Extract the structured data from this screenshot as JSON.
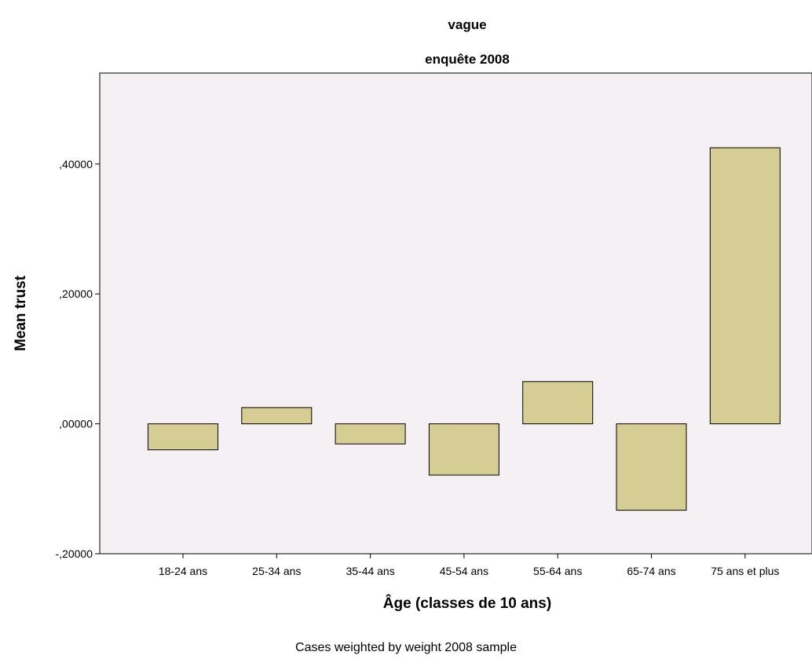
{
  "panel": {
    "header": "vague",
    "subheader": "enquête 2008"
  },
  "footnote": "Cases weighted by weight 2008 sample",
  "colors": {
    "plot_background": "#f5f0f4",
    "bar_fill": "#d6cd95",
    "bar_stroke": "#000000"
  },
  "chart_data": {
    "type": "bar",
    "xlabel": "Âge (classes de 10 ans)",
    "ylabel": "Mean trust",
    "categories": [
      "18-24 ans",
      "25-34 ans",
      "35-44 ans",
      "45-54 ans",
      "55-64 ans",
      "65-74 ans",
      "75 ans et plus"
    ],
    "values": [
      -0.04,
      0.025,
      -0.031,
      -0.079,
      0.065,
      -0.133,
      0.425
    ],
    "ylim": [
      -0.2,
      0.54
    ],
    "yticks": [
      -0.2,
      0.0,
      0.2,
      0.4
    ],
    "ytick_labels": [
      "-,20000",
      ",00000",
      ",20000",
      ",40000"
    ],
    "grid": false,
    "legend": "none"
  }
}
